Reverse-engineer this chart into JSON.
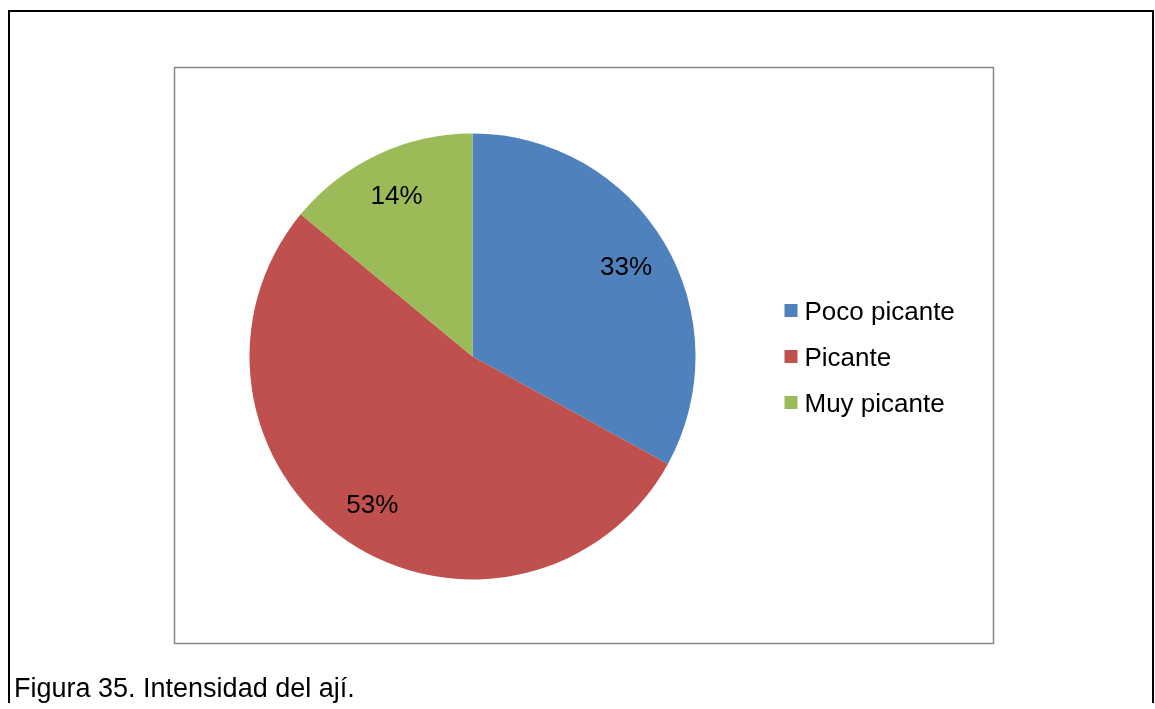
{
  "chart_data": {
    "type": "pie",
    "categories": [
      "Poco picante",
      "Picante",
      "Muy picante"
    ],
    "values": [
      33,
      53,
      14
    ],
    "colors": [
      "#4f81bd",
      "#c0504d",
      "#9bbb59"
    ],
    "value_labels": [
      "33%",
      "53%",
      "14%"
    ],
    "legend": "right",
    "annotations": [
      "Figura 35. Intensidad del ají."
    ]
  }
}
